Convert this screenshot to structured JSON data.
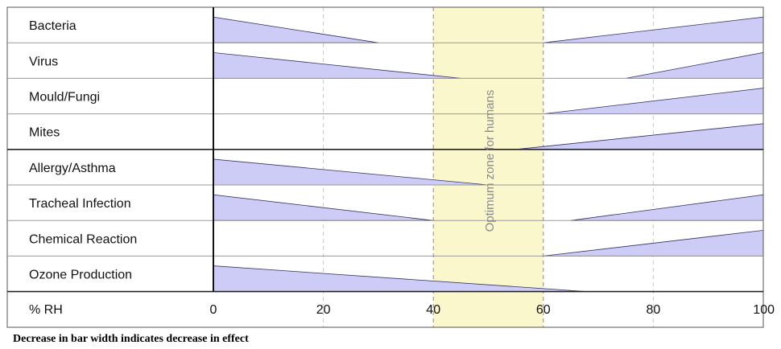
{
  "chart_data": {
    "type": "area",
    "xlabel": "% RH",
    "xlim": [
      0,
      100
    ],
    "ticks": [
      "0",
      "20",
      "40",
      "60",
      "80",
      "100"
    ],
    "tick_values": [
      0,
      20,
      40,
      60,
      80,
      100
    ],
    "grid": "vertical dashed at 20 and 80",
    "optimum_zone": {
      "label": "Optimum zone for humans",
      "from": 40,
      "to": 60,
      "color": "#fbf7cc"
    },
    "fill_color": "#ccccf6",
    "categories": [
      "Bacteria",
      "Virus",
      "Mould/Fungi",
      "Mites",
      "Allergy/Asthma",
      "Tracheal Infection",
      "Chemical Reaction",
      "Ozone Production"
    ],
    "series": [
      {
        "name": "Bacteria",
        "segments": [
          {
            "x": [
              0,
              30
            ],
            "width": [
              1,
              0
            ]
          },
          {
            "x": [
              60,
              100
            ],
            "width": [
              0,
              1
            ]
          }
        ]
      },
      {
        "name": "Virus",
        "segments": [
          {
            "x": [
              0,
              45
            ],
            "width": [
              1,
              0
            ]
          },
          {
            "x": [
              75,
              100
            ],
            "width": [
              0,
              1
            ]
          }
        ]
      },
      {
        "name": "Mould/Fungi",
        "segments": [
          {
            "x": [
              60,
              100
            ],
            "width": [
              0,
              1
            ]
          }
        ]
      },
      {
        "name": "Mites",
        "segments": [
          {
            "x": [
              55,
              100
            ],
            "width": [
              0,
              1
            ]
          }
        ]
      },
      {
        "name": "Allergy/Asthma",
        "segments": [
          {
            "x": [
              0,
              50
            ],
            "width": [
              1,
              0
            ]
          }
        ]
      },
      {
        "name": "Tracheal Infection",
        "segments": [
          {
            "x": [
              0,
              40
            ],
            "width": [
              1,
              0
            ]
          },
          {
            "x": [
              65,
              100
            ],
            "width": [
              0,
              1
            ]
          }
        ]
      },
      {
        "name": "Chemical Reaction",
        "segments": [
          {
            "x": [
              60,
              100
            ],
            "width": [
              0,
              1
            ]
          }
        ]
      },
      {
        "name": "Ozone Production",
        "segments": [
          {
            "x": [
              0,
              68
            ],
            "width": [
              1,
              0
            ]
          }
        ]
      }
    ],
    "annotation": "Decrease in bar width indicates decrease in effect"
  }
}
